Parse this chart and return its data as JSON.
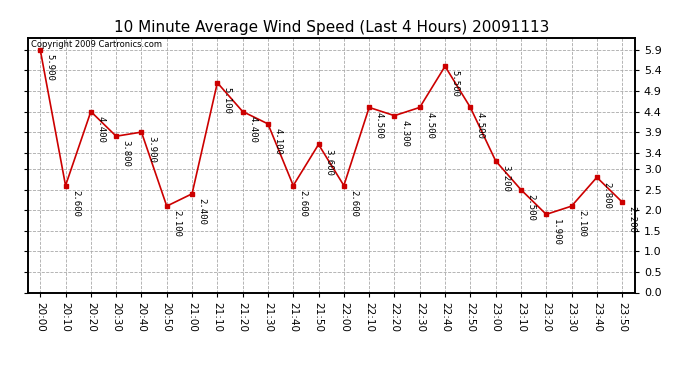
{
  "title": "10 Minute Average Wind Speed (Last 4 Hours) 20091113",
  "copyright": "Copyright 2009 Cartronics.com",
  "times": [
    "20:00",
    "20:10",
    "20:20",
    "20:30",
    "20:40",
    "20:50",
    "21:00",
    "21:10",
    "21:20",
    "21:30",
    "21:40",
    "21:50",
    "22:00",
    "22:10",
    "22:20",
    "22:30",
    "22:40",
    "22:50",
    "23:00",
    "23:10",
    "23:20",
    "23:30",
    "23:40",
    "23:50"
  ],
  "values": [
    5.9,
    2.6,
    4.4,
    3.8,
    3.9,
    2.1,
    2.4,
    5.1,
    4.4,
    4.1,
    2.6,
    3.6,
    2.6,
    4.5,
    4.3,
    4.5,
    5.5,
    4.5,
    3.2,
    2.5,
    1.9,
    2.1,
    2.8,
    2.2
  ],
  "ylim": [
    0.0,
    6.2
  ],
  "yticks": [
    0.0,
    0.5,
    1.0,
    1.5,
    2.0,
    2.5,
    3.0,
    3.4,
    3.9,
    4.4,
    4.9,
    5.4,
    5.9
  ],
  "line_color": "#cc0000",
  "marker_color": "#cc0000",
  "bg_color": "#ffffff",
  "plot_bg_color": "#ffffff",
  "grid_color": "#aaaaaa",
  "title_fontsize": 11,
  "annotation_fontsize": 6.5,
  "tick_fontsize": 7.5,
  "copyright_fontsize": 6.0
}
